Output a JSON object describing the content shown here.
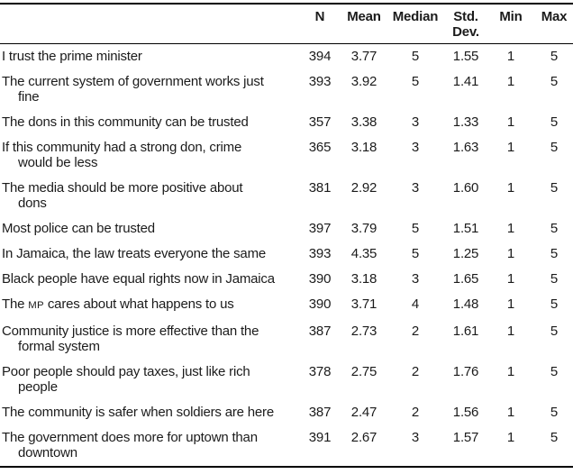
{
  "table": {
    "title_semantic": "Descriptive statistics of trust and governance statements",
    "header": {
      "statement": "",
      "n": "N",
      "mean": "Mean",
      "median": "Median",
      "std1": "Std.",
      "std2": "Dev.",
      "min": "Min",
      "max": "Max"
    },
    "rows": [
      {
        "lines": [
          "I trust the prime minister"
        ],
        "values": [
          "394",
          "3.77",
          "5",
          "1.55",
          "1",
          "5"
        ]
      },
      {
        "lines": [
          "The current system of government works just",
          "fine"
        ],
        "values": [
          "393",
          "3.92",
          "5",
          "1.41",
          "1",
          "5"
        ]
      },
      {
        "lines": [
          "The dons in this community can be trusted"
        ],
        "values": [
          "357",
          "3.38",
          "3",
          "1.33",
          "1",
          "5"
        ]
      },
      {
        "lines": [
          "If this community had a strong don, crime",
          "would be less"
        ],
        "values": [
          "365",
          "3.18",
          "3",
          "1.63",
          "1",
          "5"
        ]
      },
      {
        "lines": [
          "The media should be more positive about",
          "dons"
        ],
        "values": [
          "381",
          "2.92",
          "3",
          "1.60",
          "1",
          "5"
        ]
      },
      {
        "lines": [
          "Most police can be trusted"
        ],
        "values": [
          "397",
          "3.79",
          "5",
          "1.51",
          "1",
          "5"
        ]
      },
      {
        "lines": [
          "In Jamaica, the law treats everyone the same"
        ],
        "values": [
          "393",
          "4.35",
          "5",
          "1.25",
          "1",
          "5"
        ]
      },
      {
        "lines": [
          "Black people have equal rights now in Jamaica"
        ],
        "values": [
          "390",
          "3.18",
          "3",
          "1.65",
          "1",
          "5"
        ]
      },
      {
        "lines": [
          "The MP cares about what happens to us"
        ],
        "values": [
          "390",
          "3.71",
          "4",
          "1.48",
          "1",
          "5"
        ]
      },
      {
        "lines": [
          "Community justice is more effective than the",
          "formal system"
        ],
        "values": [
          "387",
          "2.73",
          "2",
          "1.61",
          "1",
          "5"
        ]
      },
      {
        "lines": [
          "Poor people should pay taxes, just like rich",
          "people"
        ],
        "values": [
          "378",
          "2.75",
          "2",
          "1.76",
          "1",
          "5"
        ]
      },
      {
        "lines": [
          "The community is safer when soldiers are here"
        ],
        "values": [
          "387",
          "2.47",
          "2",
          "1.56",
          "1",
          "5"
        ]
      },
      {
        "lines": [
          "The government does more for uptown than",
          "downtown"
        ],
        "values": [
          "391",
          "2.67",
          "3",
          "1.57",
          "1",
          "5"
        ]
      }
    ]
  }
}
